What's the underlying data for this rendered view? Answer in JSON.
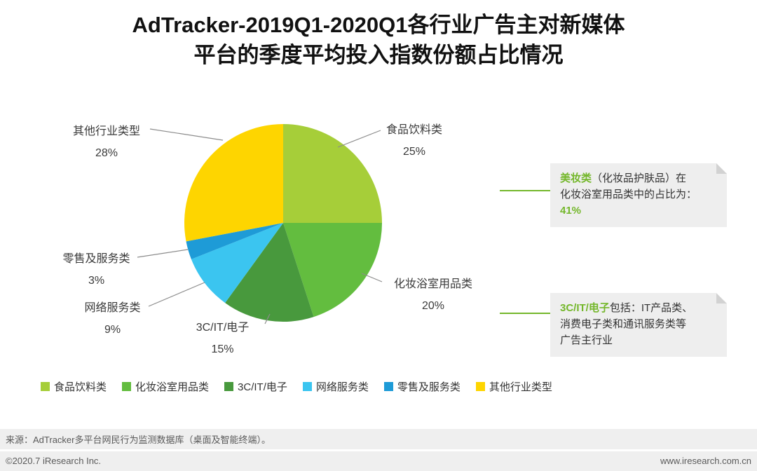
{
  "page": {
    "title_line1": "AdTracker-2019Q1-2020Q1各行业广告主对新媒体",
    "title_line2": "平台的季度平均投入指数份额占比情况"
  },
  "colors": {
    "accent_green": "#74b72b",
    "leader_line": "#8c8c8c",
    "callout_bg": "#eeeeee"
  },
  "chart_data": {
    "type": "pie",
    "title": "AdTracker-2019Q1-2020Q1各行业广告主对新媒体平台的季度平均投入指数份额占比情况",
    "start_angle_deg": 0,
    "direction": "clockwise",
    "center": [
      404,
      318
    ],
    "radius": 141,
    "legend_position": "bottom",
    "slices": [
      {
        "label": "食品饮料类",
        "value": 25,
        "pct": "25%",
        "color": "#a6ce39"
      },
      {
        "label": "化妆浴室用品类",
        "value": 20,
        "pct": "20%",
        "color": "#63bd3f"
      },
      {
        "label": "3C/IT/电子",
        "value": 15,
        "pct": "15%",
        "color": "#48993d"
      },
      {
        "label": "网络服务类",
        "value": 9,
        "pct": "9%",
        "color": "#3bc5f0"
      },
      {
        "label": "零售及服务类",
        "value": 3,
        "pct": "3%",
        "color": "#1e9bd7"
      },
      {
        "label": "其他行业类型",
        "value": 28,
        "pct": "28%",
        "color": "#fed500"
      }
    ]
  },
  "callouts": {
    "beauty": {
      "highlight": "美妆类",
      "after_highlight": "（化妆品护肤品）在",
      "line2": "化妆浴室用品类中的占比为：",
      "value": "41%"
    },
    "electronics": {
      "highlight": "3C/IT/电子",
      "after_highlight": "包括：IT产品类、",
      "line2": "消费电子类和通讯服务类等",
      "line3": "广告主行业"
    }
  },
  "footer": {
    "source": "来源：AdTracker多平台网民行为监测数据库（桌面及智能终端）。",
    "copyright": "©2020.7 iResearch Inc.",
    "website": "www.iresearch.com.cn"
  }
}
